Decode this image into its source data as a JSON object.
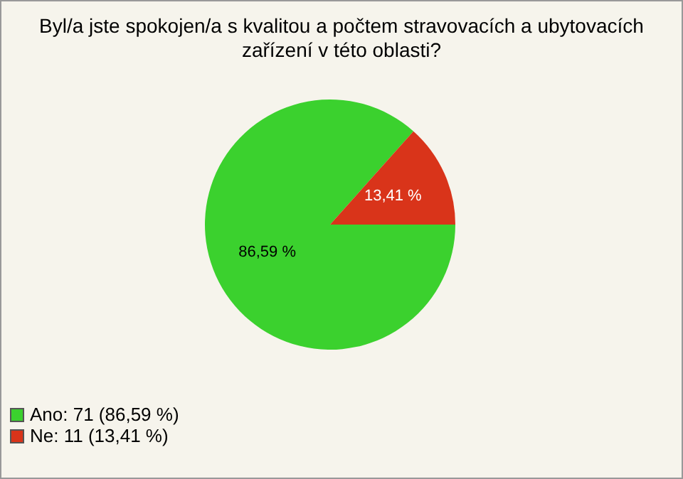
{
  "chart_data": {
    "type": "pie",
    "title": "Byl/a jste spokojen/a s kvalitou a počtem stravovacích a ubytovacích zařízení v této oblasti?",
    "categories": [
      "Ano: 71 (86,59 %)",
      "Ne: 11 (13,41 %)"
    ],
    "values": [
      86.59,
      13.41
    ],
    "value_labels": [
      "86,59 %",
      "13,41 %"
    ],
    "colors": [
      "#3bd12e",
      "#d9341a"
    ],
    "legend": "bottom left"
  }
}
